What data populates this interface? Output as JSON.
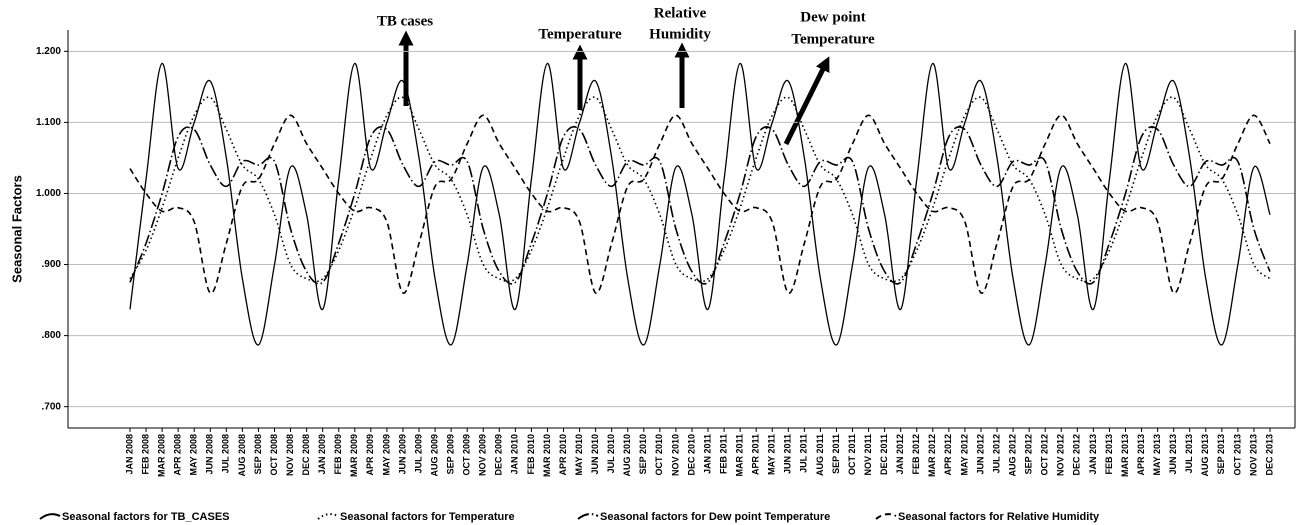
{
  "chart_data": {
    "type": "line",
    "y_label": "Seasonal Factors",
    "ylim": [
      0.67,
      1.23
    ],
    "yticks": [
      {
        "value": 0.7,
        "label": ".700"
      },
      {
        "value": 0.8,
        "label": ".800"
      },
      {
        "value": 0.9,
        "label": ".900"
      },
      {
        "value": 1.0,
        "label": "1.000"
      },
      {
        "value": 1.1,
        "label": "1.100"
      },
      {
        "value": 1.2,
        "label": "1.200"
      }
    ],
    "grid": true,
    "legend": "bottom",
    "annotations": [
      [
        "TB cases"
      ],
      [
        "Temperature"
      ],
      [
        "Relative",
        "Humidity"
      ],
      [
        "Dew point",
        "Temperature"
      ]
    ],
    "categories": [
      "JAN 2008",
      "FEB 2008",
      "MAR 2008",
      "APR 2008",
      "MAY 2008",
      "JUN 2008",
      "JUL 2008",
      "AUG 2008",
      "SEP 2008",
      "OCT 2008",
      "NOV 2008",
      "DEC 2008",
      "JAN 2009",
      "FEB 2009",
      "MAR 2009",
      "APR 2009",
      "MAY 2009",
      "JUN 2009",
      "JUL 2009",
      "AUG 2009",
      "SEP 2009",
      "OCT 2009",
      "NOV 2009",
      "DEC 2009",
      "JAN 2010",
      "FEB 2010",
      "MAR 2010",
      "APR 2010",
      "MAY 2010",
      "JUN 2010",
      "JUL 2010",
      "AUG 2010",
      "SEP 2010",
      "OCT 2010",
      "NOV 2010",
      "DEC 2010",
      "JAN 2011",
      "FEB 2011",
      "MAR 2011",
      "APR 2011",
      "MAY 2011",
      "JUN 2011",
      "JUL 2011",
      "AUG 2011",
      "SEP 2011",
      "OCT 2011",
      "NOV 2011",
      "DEC 2011",
      "JAN 2012",
      "FEB 2012",
      "MAR 2012",
      "APR 2012",
      "MAY 2012",
      "JUN 2012",
      "JUL 2012",
      "AUG 2012",
      "SEP 2012",
      "OCT 2012",
      "NOV 2012",
      "DEC 2012",
      "JAN 2013",
      "FEB 2013",
      "MAR 2013",
      "APR 2013",
      "MAY 2013",
      "JUN 2013",
      "JUL 2013",
      "AUG 2013",
      "SEP 2013",
      "OCT 2013",
      "NOV 2013",
      "DEC 2013"
    ],
    "series": [
      {
        "name": "Seasonal factors for TB_CASES",
        "color": "#000000",
        "dash": "solid",
        "values": [
          0.837,
          1.02,
          1.183,
          1.035,
          1.1,
          1.158,
          1.05,
          0.88,
          0.787,
          0.9,
          1.037,
          0.97,
          0.837,
          1.02,
          1.183,
          1.035,
          1.1,
          1.158,
          1.05,
          0.88,
          0.787,
          0.9,
          1.037,
          0.97,
          0.837,
          1.02,
          1.183,
          1.035,
          1.1,
          1.158,
          1.05,
          0.88,
          0.787,
          0.9,
          1.037,
          0.97,
          0.837,
          1.02,
          1.183,
          1.035,
          1.1,
          1.158,
          1.05,
          0.88,
          0.787,
          0.9,
          1.037,
          0.97,
          0.837,
          1.02,
          1.183,
          1.035,
          1.1,
          1.158,
          1.05,
          0.88,
          0.787,
          0.9,
          1.037,
          0.97,
          0.837,
          1.02,
          1.183,
          1.035,
          1.1,
          1.158,
          1.05,
          0.88,
          0.787,
          0.9,
          1.037,
          0.97
        ]
      },
      {
        "name": "Seasonal factors for Temperature",
        "color": "#000000",
        "dash": "dotted",
        "values": [
          0.88,
          0.92,
          0.98,
          1.05,
          1.11,
          1.135,
          1.09,
          1.04,
          1.02,
          0.97,
          0.9,
          0.88,
          0.88,
          0.92,
          0.98,
          1.05,
          1.11,
          1.135,
          1.09,
          1.04,
          1.02,
          0.97,
          0.9,
          0.88,
          0.88,
          0.92,
          0.98,
          1.05,
          1.11,
          1.135,
          1.09,
          1.04,
          1.02,
          0.97,
          0.9,
          0.88,
          0.88,
          0.92,
          0.98,
          1.05,
          1.11,
          1.135,
          1.09,
          1.04,
          1.02,
          0.97,
          0.9,
          0.88,
          0.88,
          0.92,
          0.98,
          1.05,
          1.11,
          1.135,
          1.09,
          1.04,
          1.02,
          0.97,
          0.9,
          0.88,
          0.88,
          0.92,
          0.98,
          1.05,
          1.11,
          1.135,
          1.09,
          1.04,
          1.02,
          0.97,
          0.9,
          0.88
        ]
      },
      {
        "name": "Seasonal factors for Dew point Temperature",
        "color": "#000000",
        "dash": "dashdot",
        "values": [
          0.875,
          0.93,
          1.0,
          1.08,
          1.09,
          1.04,
          1.01,
          1.045,
          1.04,
          1.045,
          0.95,
          0.89,
          0.875,
          0.93,
          1.0,
          1.08,
          1.09,
          1.04,
          1.01,
          1.045,
          1.04,
          1.045,
          0.95,
          0.89,
          0.875,
          0.93,
          1.0,
          1.08,
          1.09,
          1.04,
          1.01,
          1.045,
          1.04,
          1.045,
          0.95,
          0.89,
          0.875,
          0.93,
          1.0,
          1.08,
          1.09,
          1.04,
          1.01,
          1.045,
          1.04,
          1.045,
          0.95,
          0.89,
          0.875,
          0.93,
          1.0,
          1.08,
          1.09,
          1.04,
          1.01,
          1.045,
          1.04,
          1.045,
          0.95,
          0.89,
          0.875,
          0.93,
          1.0,
          1.08,
          1.09,
          1.04,
          1.01,
          1.045,
          1.04,
          1.045,
          0.95,
          0.89
        ]
      },
      {
        "name": "Seasonal factors for Relative Humidity",
        "color": "#000000",
        "dash": "dashed",
        "values": [
          1.035,
          1.0,
          0.975,
          0.98,
          0.96,
          0.86,
          0.93,
          1.01,
          1.02,
          1.07,
          1.11,
          1.07,
          1.035,
          1.0,
          0.975,
          0.98,
          0.96,
          0.86,
          0.93,
          1.01,
          1.02,
          1.07,
          1.11,
          1.07,
          1.035,
          1.0,
          0.975,
          0.98,
          0.96,
          0.86,
          0.93,
          1.01,
          1.02,
          1.07,
          1.11,
          1.07,
          1.035,
          1.0,
          0.975,
          0.98,
          0.96,
          0.86,
          0.93,
          1.01,
          1.02,
          1.07,
          1.11,
          1.07,
          1.035,
          1.0,
          0.975,
          0.98,
          0.96,
          0.86,
          0.93,
          1.01,
          1.02,
          1.07,
          1.11,
          1.07,
          1.035,
          1.0,
          0.975,
          0.98,
          0.96,
          0.86,
          0.93,
          1.01,
          1.02,
          1.07,
          1.11,
          1.07
        ]
      }
    ]
  }
}
